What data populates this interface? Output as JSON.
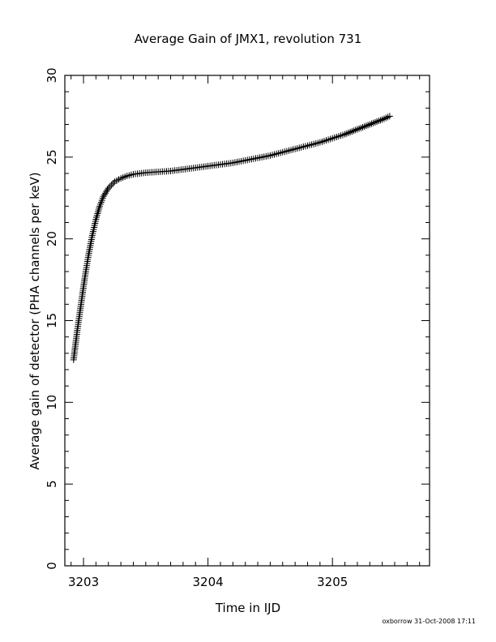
{
  "chart_data": {
    "type": "scatter",
    "title": "Average Gain of JMX1, revolution 731",
    "xlabel": "Time in IJD",
    "ylabel": "Average gain of detector (PHA channels per keV)",
    "xlim": [
      3202.85,
      3205.78
    ],
    "ylim": [
      0,
      30
    ],
    "x_ticks": [
      "3203",
      "3204",
      "3205"
    ],
    "y_ticks": [
      "0",
      "5",
      "10",
      "15",
      "20",
      "25",
      "30"
    ],
    "marker": "+",
    "marker_color": "#000000",
    "grid": false,
    "series": [
      {
        "points": [
          [
            3202.92,
            12.6
          ],
          [
            3202.95,
            14.4
          ],
          [
            3202.98,
            16.0
          ],
          [
            3203.01,
            17.6
          ],
          [
            3203.04,
            19.0
          ],
          [
            3203.07,
            20.2
          ],
          [
            3203.1,
            21.2
          ],
          [
            3203.13,
            22.0
          ],
          [
            3203.16,
            22.6
          ],
          [
            3203.2,
            23.1
          ],
          [
            3203.25,
            23.5
          ],
          [
            3203.3,
            23.7
          ],
          [
            3203.35,
            23.85
          ],
          [
            3203.4,
            23.95
          ],
          [
            3203.5,
            24.05
          ],
          [
            3203.6,
            24.1
          ],
          [
            3203.7,
            24.15
          ],
          [
            3203.8,
            24.25
          ],
          [
            3203.9,
            24.35
          ],
          [
            3204.0,
            24.45
          ],
          [
            3204.1,
            24.55
          ],
          [
            3204.2,
            24.65
          ],
          [
            3204.3,
            24.8
          ],
          [
            3204.4,
            24.95
          ],
          [
            3204.5,
            25.1
          ],
          [
            3204.6,
            25.3
          ],
          [
            3204.7,
            25.5
          ],
          [
            3204.8,
            25.7
          ],
          [
            3204.9,
            25.9
          ],
          [
            3205.0,
            26.15
          ],
          [
            3205.1,
            26.4
          ],
          [
            3205.2,
            26.7
          ],
          [
            3205.3,
            27.0
          ],
          [
            3205.4,
            27.3
          ],
          [
            3205.46,
            27.5
          ]
        ]
      }
    ]
  },
  "footer_text": "oxborrow 31-Oct-2008 17:11"
}
